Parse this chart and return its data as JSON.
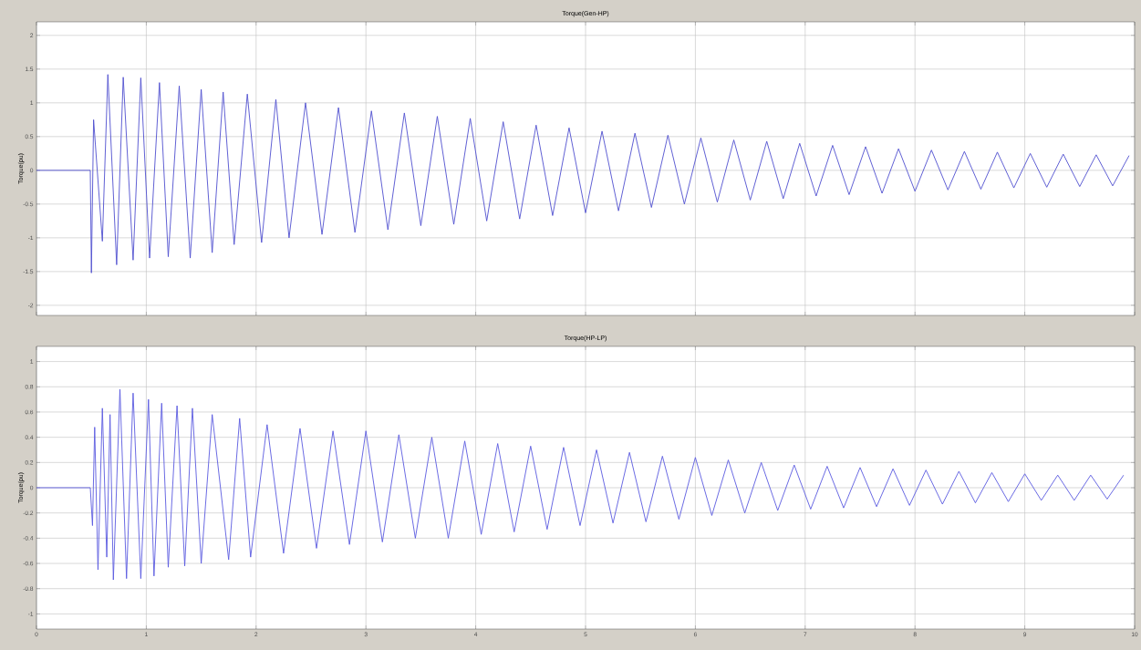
{
  "chart_data": [
    {
      "type": "line",
      "title": "Torque(Gen-HP)",
      "ylabel": "Torque(pu)",
      "color": "#4f4fcf",
      "grid": true,
      "tick_labels": "y",
      "xlim": [
        0,
        10
      ],
      "ylim": [
        -2.15,
        2.2
      ],
      "xticks": [
        0,
        1,
        2,
        3,
        4,
        5,
        6,
        7,
        8,
        9,
        10
      ],
      "yticks": [
        -2,
        -1.5,
        -1,
        -0.5,
        0,
        0.5,
        1,
        1.5,
        2
      ],
      "x": [
        0,
        0.49,
        0.5,
        0.52,
        0.6,
        0.65,
        0.73,
        0.79,
        0.88,
        0.95,
        1.03,
        1.12,
        1.2,
        1.3,
        1.4,
        1.5,
        1.6,
        1.7,
        1.8,
        1.92,
        2.05,
        2.18,
        2.3,
        2.45,
        2.6,
        2.75,
        2.9,
        3.05,
        3.2,
        3.35,
        3.5,
        3.65,
        3.8,
        3.95,
        4.1,
        4.25,
        4.4,
        4.55,
        4.7,
        4.85,
        5.0,
        5.15,
        5.3,
        5.45,
        5.6,
        5.75,
        5.9,
        6.05,
        6.2,
        6.35,
        6.5,
        6.65,
        6.8,
        6.95,
        7.1,
        7.25,
        7.4,
        7.55,
        7.7,
        7.85,
        8.0,
        8.15,
        8.3,
        8.45,
        8.6,
        8.75,
        8.9,
        9.05,
        9.2,
        9.35,
        9.5,
        9.65,
        9.8,
        9.95
      ],
      "values": [
        0,
        0,
        -1.52,
        0.75,
        -1.05,
        1.42,
        -1.4,
        1.38,
        -1.33,
        1.37,
        -1.3,
        1.3,
        -1.28,
        1.25,
        -1.3,
        1.2,
        -1.22,
        1.16,
        -1.1,
        1.13,
        -1.07,
        1.05,
        -1.0,
        1.0,
        -0.95,
        0.93,
        -0.92,
        0.88,
        -0.88,
        0.85,
        -0.82,
        0.8,
        -0.8,
        0.77,
        -0.75,
        0.72,
        -0.72,
        0.67,
        -0.67,
        0.63,
        -0.63,
        0.58,
        -0.6,
        0.55,
        -0.55,
        0.52,
        -0.5,
        0.48,
        -0.47,
        0.45,
        -0.44,
        0.43,
        -0.42,
        0.4,
        -0.38,
        0.37,
        -0.36,
        0.35,
        -0.34,
        0.32,
        -0.31,
        0.3,
        -0.29,
        0.28,
        -0.28,
        0.27,
        -0.26,
        0.25,
        -0.25,
        0.24,
        -0.24,
        0.23,
        -0.23,
        0.22
      ]
    },
    {
      "type": "line",
      "title": "Torque(HP-LP)",
      "ylabel": "Torque(pu)",
      "color": "#5a5ae0",
      "grid": true,
      "xlim": [
        0,
        10
      ],
      "ylim": [
        -1.12,
        1.12
      ],
      "xticks": [
        0,
        1,
        2,
        3,
        4,
        5,
        6,
        7,
        8,
        9,
        10
      ],
      "yticks": [
        -1,
        -0.8,
        -0.6,
        -0.4,
        -0.2,
        0,
        0.2,
        0.4,
        0.6,
        0.8,
        1
      ],
      "x": [
        0,
        0.49,
        0.51,
        0.53,
        0.56,
        0.6,
        0.64,
        0.67,
        0.7,
        0.76,
        0.82,
        0.88,
        0.95,
        1.02,
        1.07,
        1.14,
        1.2,
        1.28,
        1.35,
        1.42,
        1.5,
        1.6,
        1.75,
        1.85,
        1.95,
        2.1,
        2.25,
        2.4,
        2.55,
        2.7,
        2.85,
        3.0,
        3.15,
        3.3,
        3.45,
        3.6,
        3.75,
        3.9,
        4.05,
        4.2,
        4.35,
        4.5,
        4.65,
        4.8,
        4.95,
        5.1,
        5.25,
        5.4,
        5.55,
        5.7,
        5.85,
        6.0,
        6.15,
        6.3,
        6.45,
        6.6,
        6.75,
        6.9,
        7.05,
        7.2,
        7.35,
        7.5,
        7.65,
        7.8,
        7.95,
        8.1,
        8.25,
        8.4,
        8.55,
        8.7,
        8.85,
        9.0,
        9.15,
        9.3,
        9.45,
        9.6,
        9.75,
        9.9
      ],
      "values": [
        0,
        0,
        -0.3,
        0.48,
        -0.65,
        0.63,
        -0.55,
        0.58,
        -0.73,
        0.78,
        -0.72,
        0.75,
        -0.72,
        0.7,
        -0.7,
        0.67,
        -0.63,
        0.65,
        -0.62,
        0.63,
        -0.6,
        0.58,
        -0.57,
        0.55,
        -0.55,
        0.5,
        -0.52,
        0.47,
        -0.48,
        0.45,
        -0.45,
        0.45,
        -0.43,
        0.42,
        -0.4,
        0.4,
        -0.4,
        0.37,
        -0.37,
        0.35,
        -0.35,
        0.33,
        -0.33,
        0.32,
        -0.3,
        0.3,
        -0.28,
        0.28,
        -0.27,
        0.25,
        -0.25,
        0.24,
        -0.22,
        0.22,
        -0.2,
        0.2,
        -0.18,
        0.18,
        -0.17,
        0.17,
        -0.16,
        0.16,
        -0.15,
        0.15,
        -0.14,
        0.14,
        -0.13,
        0.13,
        -0.12,
        0.12,
        -0.11,
        0.11,
        -0.1,
        0.1,
        -0.1,
        0.1,
        -0.09,
        0.1
      ]
    }
  ]
}
